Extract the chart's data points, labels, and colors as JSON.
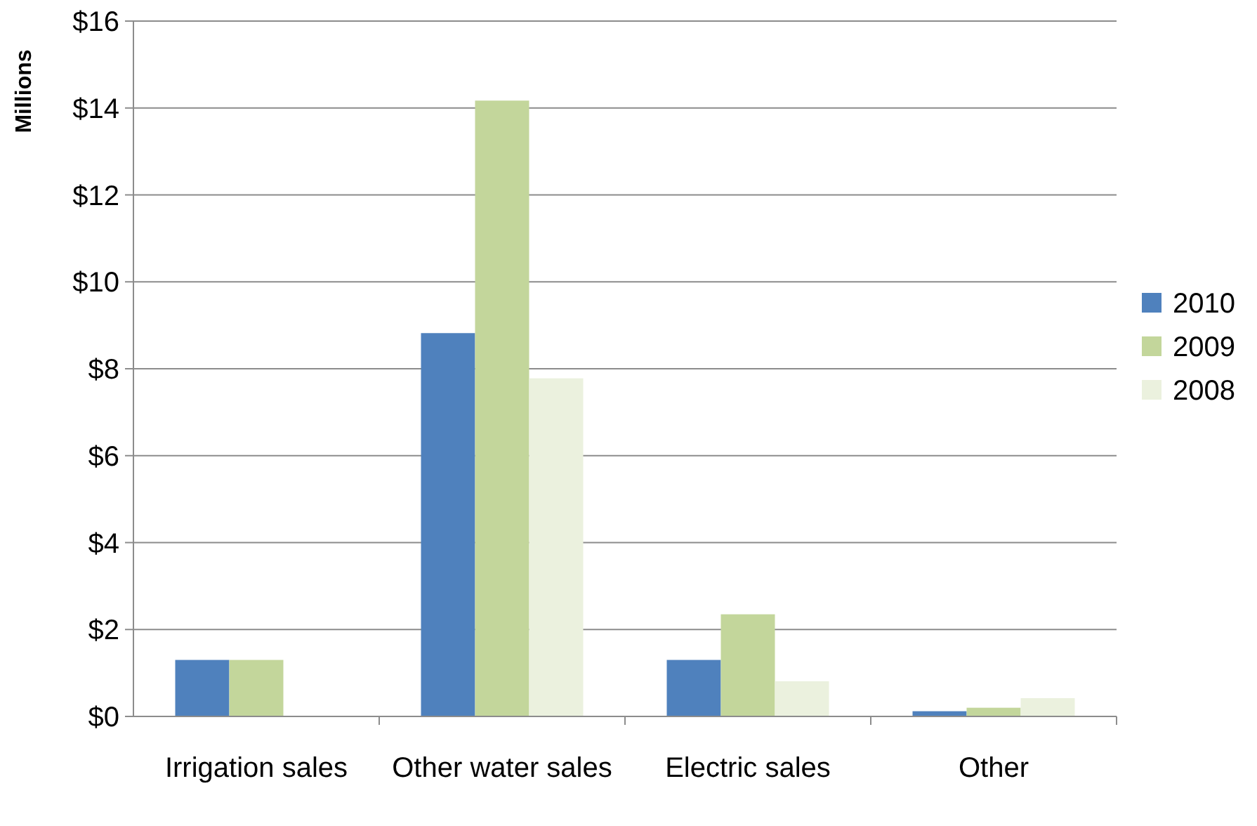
{
  "chart_data": {
    "type": "bar",
    "ylabel": "Millions",
    "categories": [
      "Irrigation sales",
      "Other water sales",
      "Electric sales",
      "Other"
    ],
    "series": [
      {
        "name": "2010",
        "color": "#4f81bd",
        "values": [
          1.3,
          8.82,
          1.3,
          0.12
        ]
      },
      {
        "name": "2009",
        "color": "#c3d69b",
        "values": [
          1.3,
          14.17,
          2.35,
          0.2
        ]
      },
      {
        "name": "2008",
        "color": "#ebf1de",
        "values": [
          null,
          7.78,
          0.81,
          0.42
        ]
      }
    ],
    "ylim": [
      0,
      16
    ],
    "yticks": [
      {
        "value": 0,
        "label": "$0"
      },
      {
        "value": 2,
        "label": "$2"
      },
      {
        "value": 4,
        "label": "$4"
      },
      {
        "value": 6,
        "label": "$6"
      },
      {
        "value": 8,
        "label": "$8"
      },
      {
        "value": 10,
        "label": "$10"
      },
      {
        "value": 12,
        "label": "$12"
      },
      {
        "value": 14,
        "label": "$14"
      },
      {
        "value": 16,
        "label": "$16"
      }
    ],
    "grid": "y",
    "legend": "right"
  }
}
